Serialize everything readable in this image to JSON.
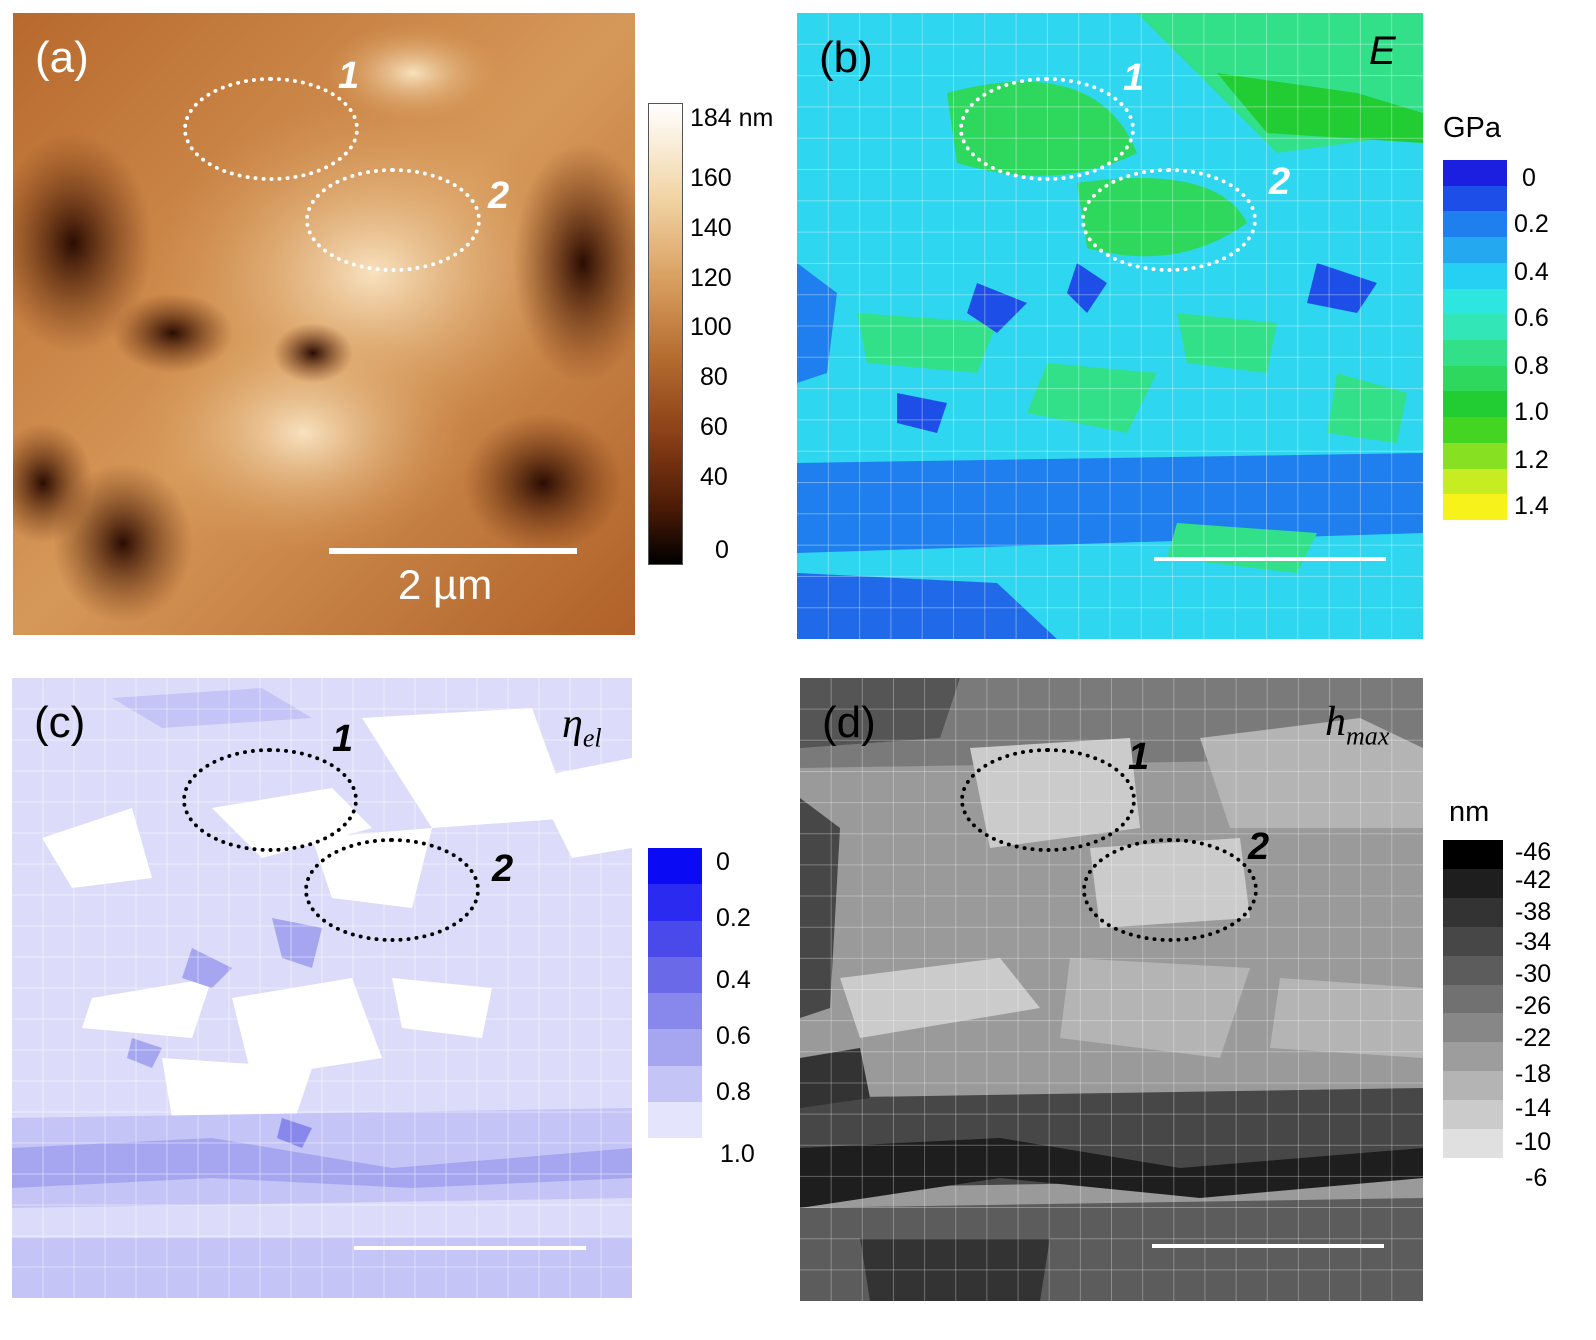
{
  "panels": {
    "a": {
      "label": "(a)",
      "region1": "1",
      "region2": "2",
      "scale_label": "2 µm",
      "colorbar": {
        "unit": "",
        "ticks": [
          "184 nm",
          "160",
          "140",
          "120",
          "100",
          "80",
          "60",
          "40",
          "0"
        ],
        "colors": [
          "#ffffff",
          "#f2d5a6",
          "#d9a061",
          "#b56c2f",
          "#8a3f16",
          "#4a1a06",
          "#000000"
        ]
      },
      "base_color": "#c97a3c"
    },
    "b": {
      "label": "(b)",
      "quantity": "E",
      "region1": "1",
      "region2": "2",
      "colorbar": {
        "unit": "GPa",
        "ticks": [
          "0",
          "0.2",
          "0.4",
          "0.6",
          "0.8",
          "1.0",
          "1.2",
          "1.4"
        ],
        "colors": [
          "#1b1fe0",
          "#1d4fe8",
          "#1f7fee",
          "#24a8f0",
          "#26d0f2",
          "#2ee6e0",
          "#33e6b8",
          "#33e08a",
          "#2ed85c",
          "#22cc33",
          "#44d422",
          "#88e022",
          "#c6ec22",
          "#f6f21a"
        ]
      },
      "base_color": "#2fd6f0"
    },
    "c": {
      "label": "(c)",
      "quantity": "ηel",
      "region1": "1",
      "region2": "2",
      "colorbar": {
        "unit": "",
        "ticks": [
          "0",
          "0.2",
          "0.4",
          "0.6",
          "0.8",
          "1.0"
        ],
        "colors": [
          "#0a0af5",
          "#2a2af0",
          "#4a4aea",
          "#6a6ae8",
          "#8888ec",
          "#a6a6f0",
          "#c4c4f6",
          "#e4e4fc"
        ]
      },
      "base_color": "#dcdcfa"
    },
    "d": {
      "label": "(d)",
      "quantity": "hmax",
      "region1": "1",
      "region2": "2",
      "colorbar": {
        "unit": "nm",
        "ticks": [
          "-46",
          "-42",
          "-38",
          "-34",
          "-30",
          "-26",
          "-22",
          "-18",
          "-14",
          "-10",
          "-6"
        ],
        "colors": [
          "#000000",
          "#1e1e1e",
          "#333333",
          "#474747",
          "#5c5c5c",
          "#717171",
          "#878787",
          "#9d9d9d",
          "#b4b4b4",
          "#cbcbcb",
          "#e0e0e0"
        ]
      },
      "base_color": "#9a9a9a"
    }
  }
}
